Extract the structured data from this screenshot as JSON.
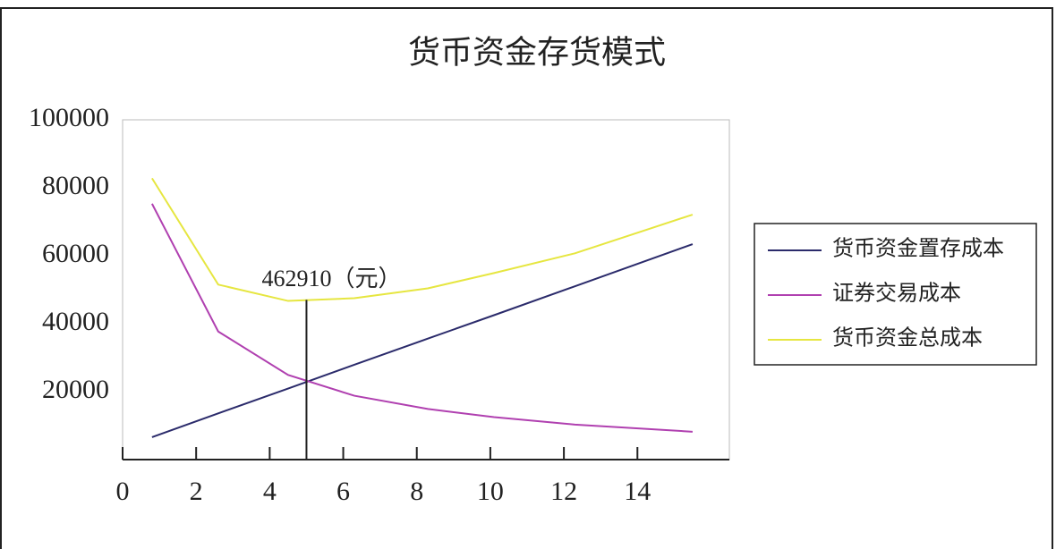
{
  "chart_data": {
    "type": "line",
    "title": "货币资金存货模式",
    "x": [
      0.8,
      2.6,
      4.5,
      6.3,
      8.3,
      10.1,
      12.3,
      15.5
    ],
    "series": [
      {
        "name": "货币资金置存成本",
        "color": "#2b2b6b",
        "values": [
          6600,
          13600,
          20900,
          27900,
          35600,
          42500,
          51000,
          63400
        ]
      },
      {
        "name": "证券交易成本",
        "color": "#b040b0",
        "values": [
          75300,
          37700,
          24900,
          18800,
          14900,
          12500,
          10300,
          8200
        ]
      },
      {
        "name": "货币资金总成本",
        "color": "#e6e640",
        "values": [
          82800,
          51500,
          46700,
          47500,
          50400,
          54900,
          60700,
          72100
        ]
      }
    ],
    "annotation": {
      "text": "462910（元）",
      "x": 5.0,
      "y": 47000
    },
    "xlim": [
      0,
      16.5
    ],
    "xticks": [
      0,
      2,
      4,
      6,
      8,
      10,
      12,
      14
    ],
    "ylim": [
      0,
      100000
    ],
    "yticks": [
      20000,
      40000,
      60000,
      80000,
      100000
    ],
    "grid": false,
    "legend": "right"
  }
}
